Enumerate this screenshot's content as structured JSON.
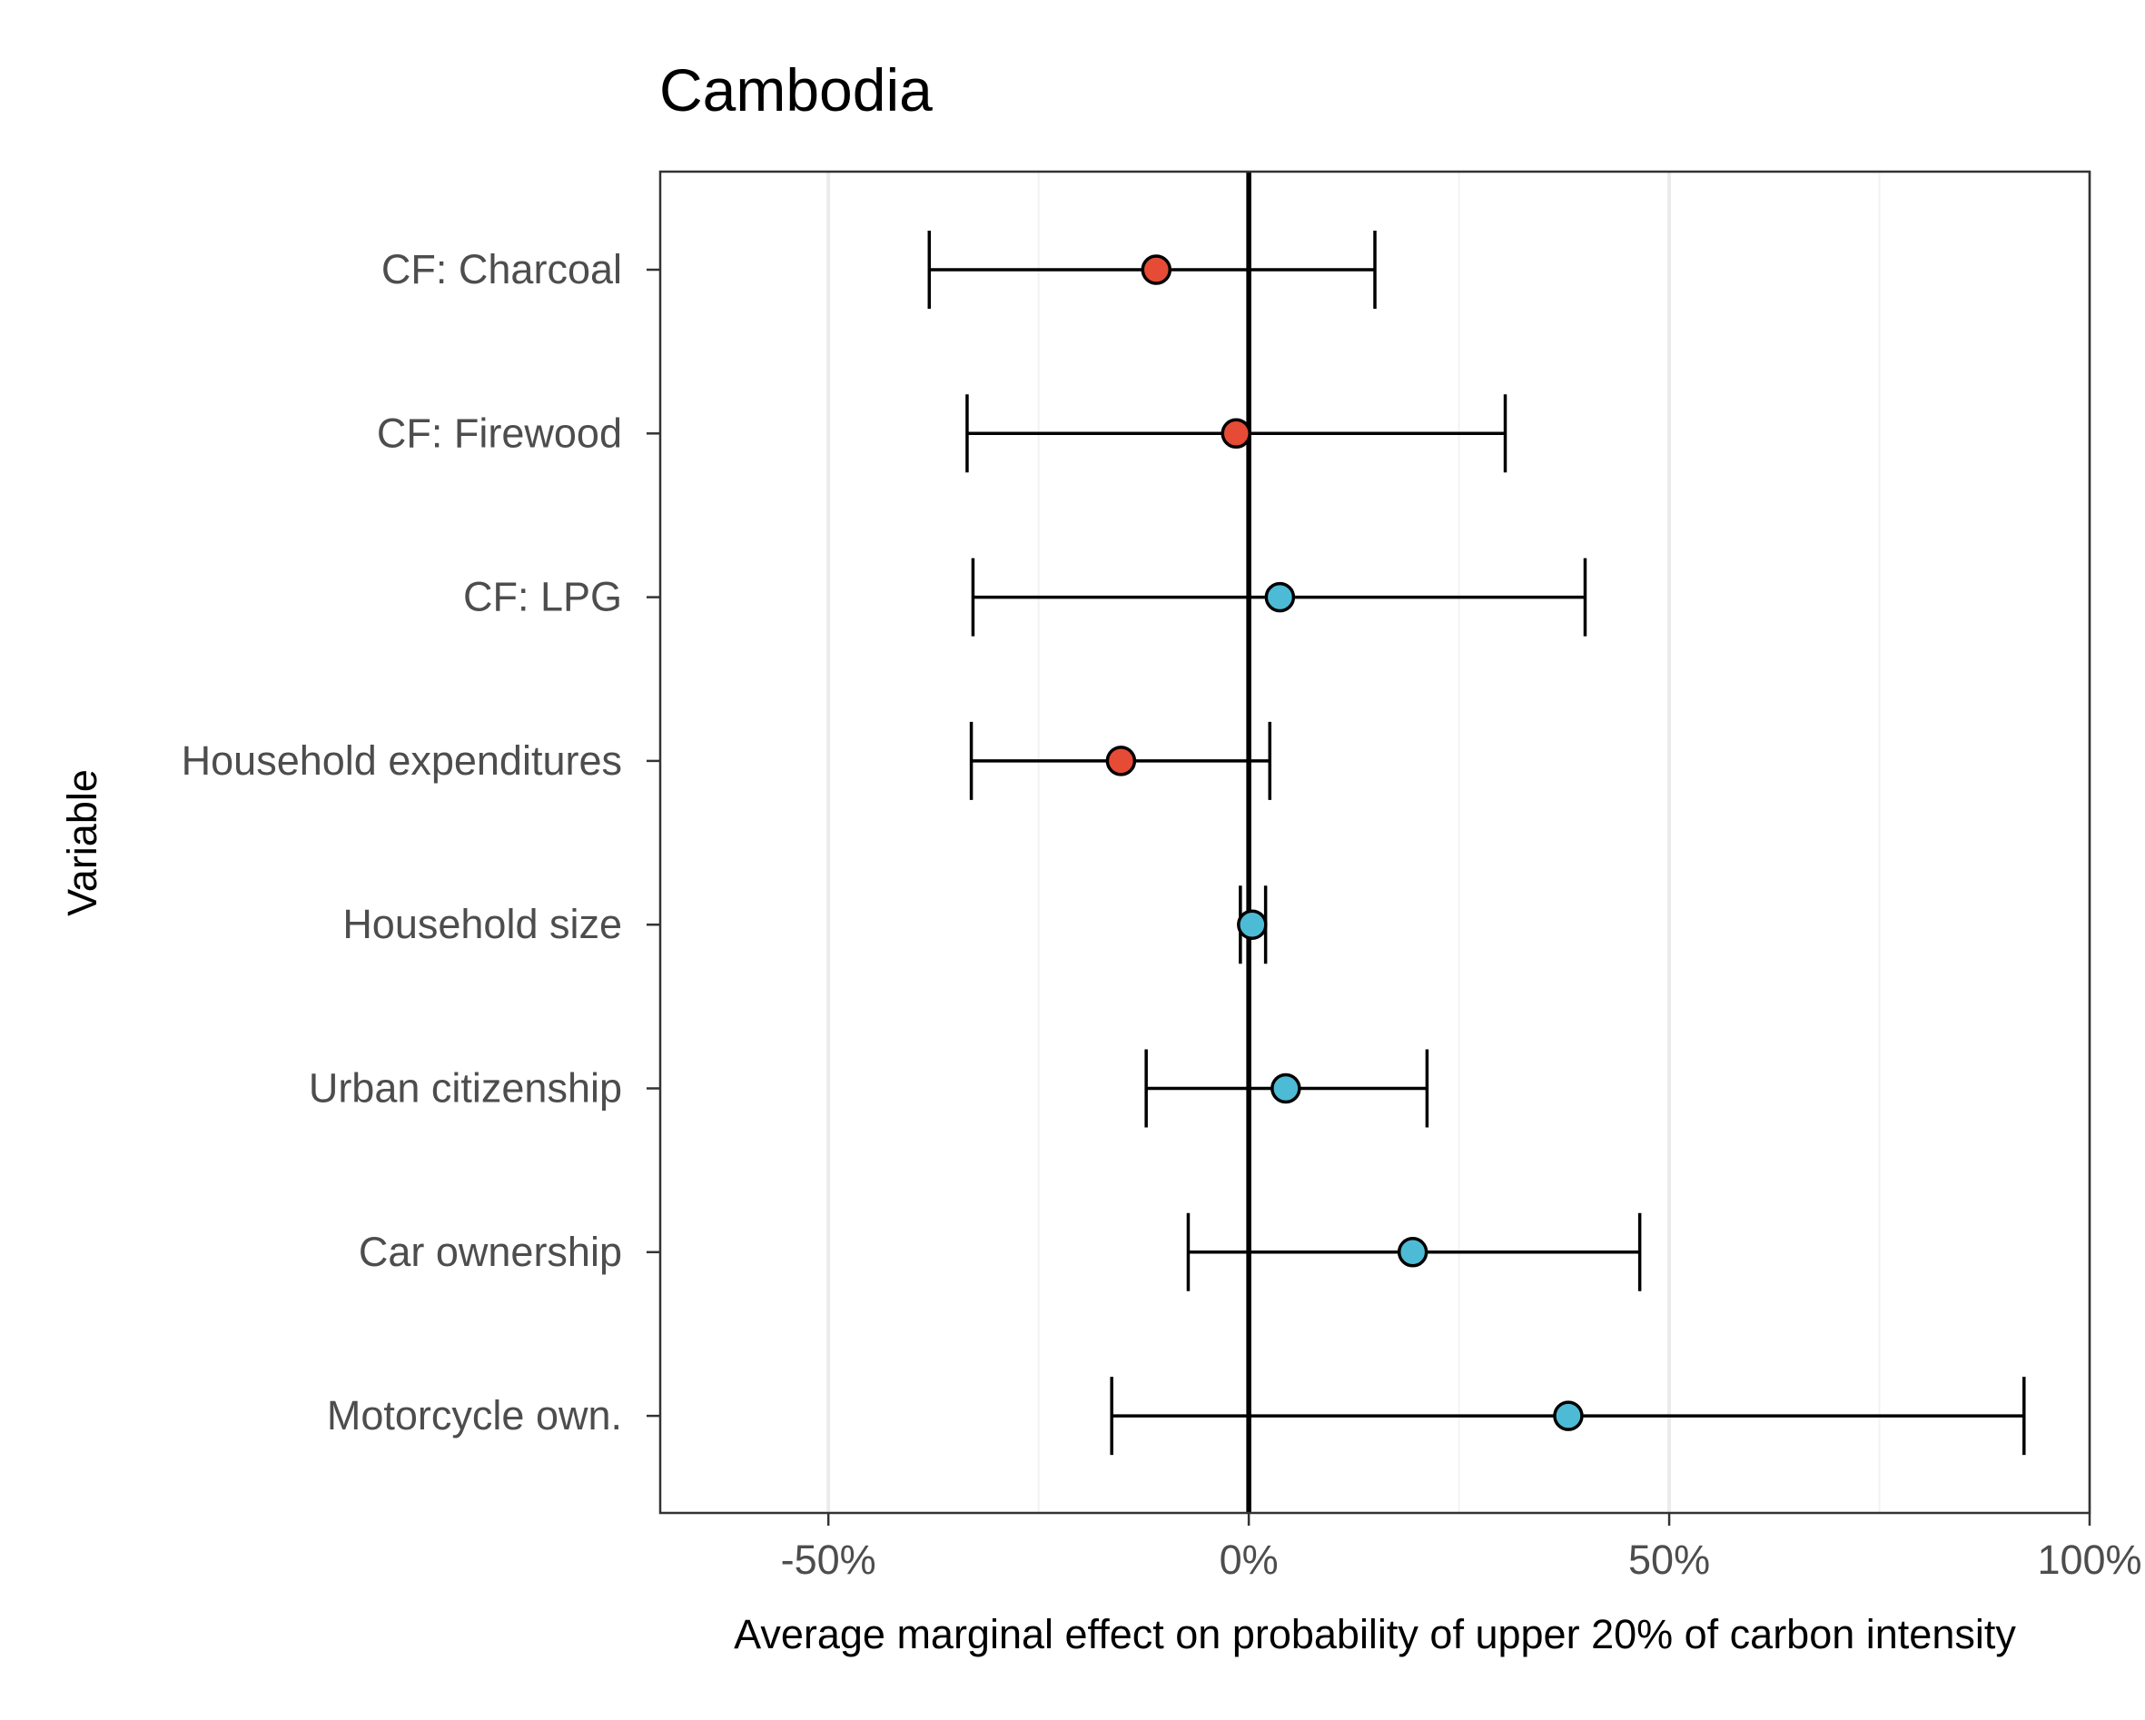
{
  "chart_data": {
    "type": "scatter",
    "subtype": "dot-and-whisker",
    "title": "Cambodia",
    "xlabel": "Average marginal effect on probability of upper 20% of carbon intensity",
    "ylabel": "Variable",
    "xlim": [
      -0.7,
      1.0
    ],
    "x_ticks": [
      -0.5,
      0,
      0.5,
      1.0
    ],
    "x_tick_labels": [
      "-50%",
      "0%",
      "50%",
      "100%"
    ],
    "x_minor_gridlines": [
      -0.25,
      0.25,
      0.75
    ],
    "grid": "vertical",
    "reference_line": 0,
    "colors": {
      "negative": "#E64B35",
      "positive": "#4DBBD5",
      "whisker": "#000000",
      "grid_major": "#EBEBEB",
      "grid_minor": "#F2F2F2",
      "axis_text": "#4D4D4D"
    },
    "points": [
      {
        "label": "CF: Charcoal",
        "estimate": -0.11,
        "lower": -0.38,
        "upper": 0.15
      },
      {
        "label": "CF: Firewood",
        "estimate": -0.015,
        "lower": -0.335,
        "upper": 0.305
      },
      {
        "label": "CF: LPG",
        "estimate": 0.037,
        "lower": -0.328,
        "upper": 0.4
      },
      {
        "label": "Household expenditures",
        "estimate": -0.152,
        "lower": -0.33,
        "upper": 0.025
      },
      {
        "label": "Household size",
        "estimate": 0.004,
        "lower": -0.01,
        "upper": 0.02
      },
      {
        "label": "Urban citizenship",
        "estimate": 0.044,
        "lower": -0.122,
        "upper": 0.212
      },
      {
        "label": "Car ownership",
        "estimate": 0.195,
        "lower": -0.072,
        "upper": 0.465
      },
      {
        "label": "Motorcycle own.",
        "estimate": 0.38,
        "lower": -0.163,
        "upper": 0.922
      }
    ]
  }
}
